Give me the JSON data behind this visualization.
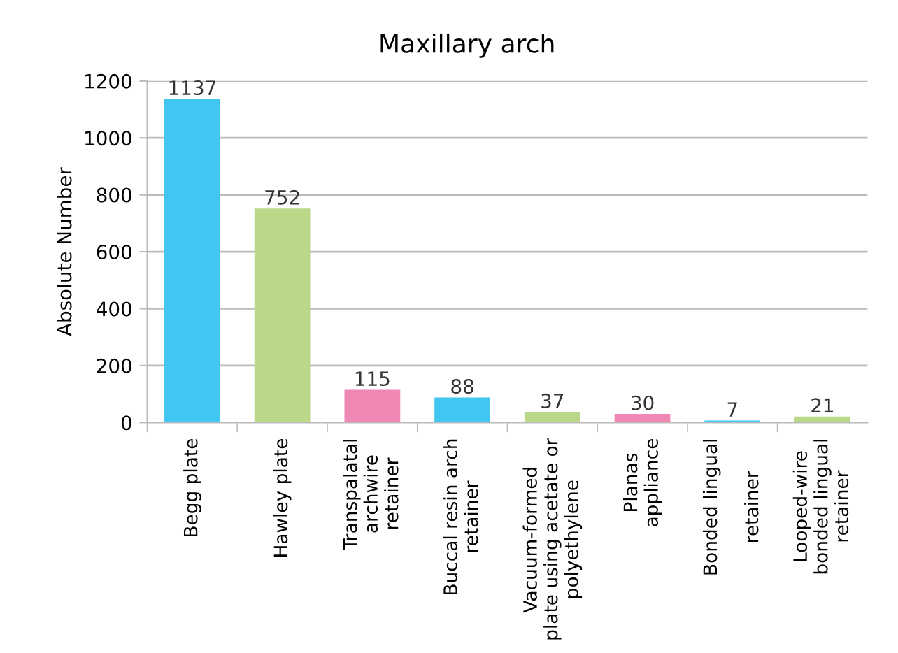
{
  "chart_data": {
    "type": "bar",
    "title": "Maxillary arch",
    "ylabel": "Absolute Number",
    "categories": [
      "Begg plate",
      "Hawley plate",
      "Transpalatal\narchwire\nretainer",
      "Buccal resin arch\nretainer",
      "Vacuum-formed\nplate using acetate or\npolyethylene",
      "Planas\nappliance",
      "Bonded lingual\n\nretainer",
      "Looped-wire\nbonded lingual\nretainer"
    ],
    "values": [
      1137,
      752,
      115,
      88,
      37,
      30,
      7,
      21
    ],
    "colors": [
      "#41c6f2",
      "#bbd88a",
      "#f088b5",
      "#41c6f2",
      "#bbd88a",
      "#f088b5",
      "#41c6f2",
      "#bbd88a"
    ],
    "ylim": [
      0,
      1200
    ],
    "yticks": [
      0,
      200,
      400,
      600,
      800,
      1000,
      1200
    ],
    "grid": "y",
    "data_labels": true
  }
}
